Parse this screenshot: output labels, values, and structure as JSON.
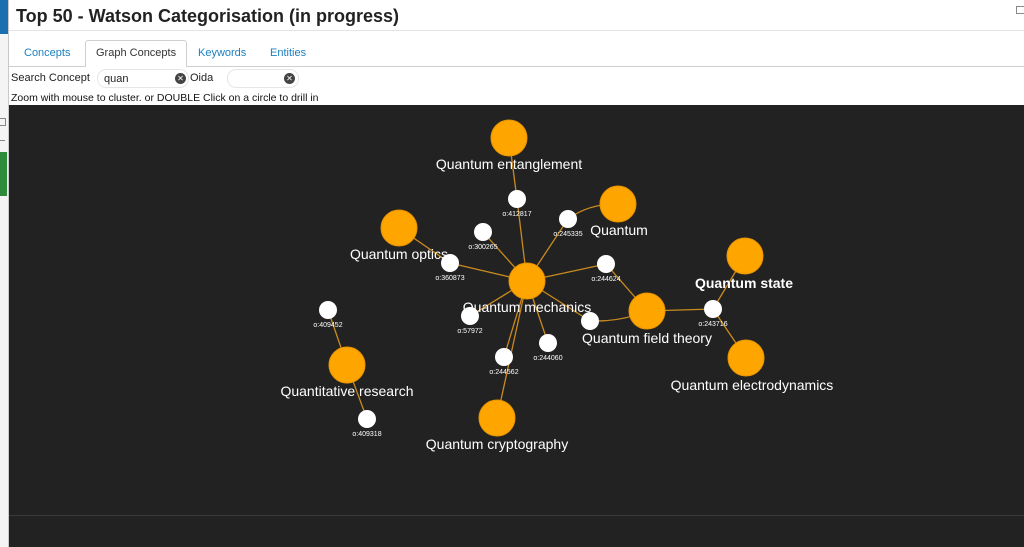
{
  "window": {
    "title": "Top 50 - Watson Categorisation (in progress)"
  },
  "tabs": [
    {
      "label": "Concepts",
      "active": false
    },
    {
      "label": "Graph Concepts",
      "active": true
    },
    {
      "label": "Keywords",
      "active": false
    },
    {
      "label": "Entities",
      "active": false
    }
  ],
  "search": {
    "concept_label": "Search Concept",
    "concept_value": "quan",
    "oid_label": "Oida",
    "oid_value": ""
  },
  "hint": "Zoom with mouse to cluster. or DOUBLE Click on a circle to drill in",
  "colors": {
    "background": "#222222",
    "concept_node": "#ffa500",
    "edge": "#c98a1e",
    "document_node": "#ffffff",
    "label": "#ffffff"
  },
  "graph": {
    "concepts": [
      {
        "id": "c-entanglement",
        "label": "Quantum entanglement"
      },
      {
        "id": "c-quantum",
        "label": "Quantum"
      },
      {
        "id": "c-optics",
        "label": "Quantum optics"
      },
      {
        "id": "c-mechanics",
        "label": "Quantum mechanics"
      },
      {
        "id": "c-state",
        "label": "Quantum state",
        "bold": true
      },
      {
        "id": "c-field",
        "label": "Quantum field theory"
      },
      {
        "id": "c-electro",
        "label": "Quantum electrodynamics"
      },
      {
        "id": "c-quant-research",
        "label": "Quantitative research"
      },
      {
        "id": "c-crypto",
        "label": "Quantum cryptography"
      }
    ],
    "documents": [
      {
        "id": "o:412817",
        "label": "o:412817"
      },
      {
        "id": "o:300265",
        "label": "o:300265"
      },
      {
        "id": "o:245335",
        "label": "o:245335"
      },
      {
        "id": "o:360873",
        "label": "o:360873"
      },
      {
        "id": "o:244624",
        "label": "o:244624"
      },
      {
        "id": "o:409452",
        "label": "o:409452"
      },
      {
        "id": "o:57972",
        "label": "o:57972"
      },
      {
        "id": "o:243716",
        "label": "o:243716"
      },
      {
        "id": "o:244060",
        "label": "o:244060"
      },
      {
        "id": "o:244562",
        "label": "o:244562"
      },
      {
        "id": "o:409318",
        "label": "o:409318"
      },
      {
        "id": "o:244051",
        "label": ""
      }
    ],
    "edges": [
      [
        "c-entanglement",
        "o:412817"
      ],
      [
        "o:412817",
        "c-mechanics"
      ],
      [
        "c-quantum",
        "o:245335"
      ],
      [
        "o:245335",
        "c-mechanics"
      ],
      [
        "c-optics",
        "o:360873"
      ],
      [
        "o:360873",
        "c-mechanics"
      ],
      [
        "o:300265",
        "c-mechanics"
      ],
      [
        "o:244624",
        "c-mechanics"
      ],
      [
        "o:244624",
        "c-field"
      ],
      [
        "o:57972",
        "c-mechanics"
      ],
      [
        "o:244060",
        "c-mechanics"
      ],
      [
        "o:244562",
        "c-mechanics"
      ],
      [
        "c-crypto",
        "c-mechanics"
      ],
      [
        "o:244051",
        "c-mechanics"
      ],
      [
        "o:244051",
        "c-field"
      ],
      [
        "c-field",
        "o:243716"
      ],
      [
        "o:243716",
        "c-state"
      ],
      [
        "o:243716",
        "c-electro"
      ],
      [
        "c-quant-research",
        "o:409452"
      ],
      [
        "c-quant-research",
        "o:409318"
      ]
    ]
  }
}
